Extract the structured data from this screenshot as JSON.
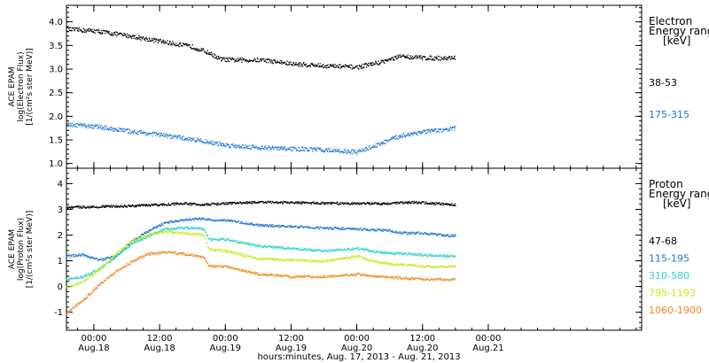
{
  "chart_data": {
    "type": "scatter",
    "x_axis": {
      "label": "hours:minutes, Aug. 17, 2013 - Aug. 21, 2013",
      "range_hours_from_aug17_0000": [
        19,
        124
      ],
      "ticks": [
        {
          "hours": 24,
          "time": "00:00",
          "date": "Aug.18"
        },
        {
          "hours": 36,
          "time": "12:00",
          "date": "Aug.18"
        },
        {
          "hours": 48,
          "time": "00:00",
          "date": "Aug.19"
        },
        {
          "hours": 60,
          "time": "12:00",
          "date": "Aug.19"
        },
        {
          "hours": 72,
          "time": "00:00",
          "date": "Aug.20"
        },
        {
          "hours": 84,
          "time": "12:00",
          "date": "Aug.20"
        },
        {
          "hours": 96,
          "time": "00:00",
          "date": "Aug.21"
        }
      ]
    },
    "panels": [
      {
        "id": "electron",
        "ylabel": [
          "ACE EPAM",
          "log(Electron Flux)",
          "[1/(cm²s ster MeV)]"
        ],
        "ylim": [
          0.9,
          4.35
        ],
        "yticks": [
          "1.0",
          "1.5",
          "2.0",
          "2.5",
          "3.0",
          "3.5",
          "4.0"
        ],
        "legend_title": [
          "Electron",
          "Energy ranges",
          "[keV]"
        ],
        "series": [
          {
            "name": "38-53",
            "color": "#000000",
            "points": [
              [
                19,
                3.85
              ],
              [
                24,
                3.82
              ],
              [
                30,
                3.72
              ],
              [
                36,
                3.6
              ],
              [
                42,
                3.48
              ],
              [
                45,
                3.35
              ],
              [
                47,
                3.22
              ],
              [
                50,
                3.2
              ],
              [
                55,
                3.2
              ],
              [
                60,
                3.12
              ],
              [
                66,
                3.08
              ],
              [
                72,
                3.05
              ],
              [
                76,
                3.15
              ],
              [
                80,
                3.28
              ],
              [
                84,
                3.25
              ],
              [
                88,
                3.24
              ],
              [
                90,
                3.26
              ]
            ]
          },
          {
            "name": "175-315",
            "color": "#1f77d0",
            "points": [
              [
                19,
                1.83
              ],
              [
                24,
                1.8
              ],
              [
                30,
                1.7
              ],
              [
                36,
                1.62
              ],
              [
                42,
                1.52
              ],
              [
                48,
                1.4
              ],
              [
                54,
                1.35
              ],
              [
                60,
                1.32
              ],
              [
                66,
                1.3
              ],
              [
                72,
                1.25
              ],
              [
                76,
                1.42
              ],
              [
                80,
                1.6
              ],
              [
                84,
                1.68
              ],
              [
                88,
                1.72
              ],
              [
                90,
                1.76
              ]
            ]
          }
        ]
      },
      {
        "id": "proton",
        "ylabel": [
          "ACE EPAM",
          "log(Proton Flux)",
          "[1/(cm²s ster MeV)]"
        ],
        "ylim": [
          -1.7,
          4.6
        ],
        "yticks": [
          "-1",
          "0",
          "1",
          "2",
          "3",
          "4"
        ],
        "legend_title": [
          "Proton",
          "Energy ranges",
          "[keV]"
        ],
        "series": [
          {
            "name": "47-68",
            "color": "#000000",
            "points": [
              [
                19,
                3.1
              ],
              [
                24,
                3.12
              ],
              [
                30,
                3.15
              ],
              [
                36,
                3.2
              ],
              [
                40,
                3.25
              ],
              [
                44,
                3.2
              ],
              [
                48,
                3.25
              ],
              [
                54,
                3.3
              ],
              [
                60,
                3.28
              ],
              [
                66,
                3.26
              ],
              [
                72,
                3.25
              ],
              [
                78,
                3.25
              ],
              [
                82,
                3.3
              ],
              [
                86,
                3.25
              ],
              [
                90,
                3.2
              ]
            ]
          },
          {
            "name": "115-195",
            "color": "#1f77d0",
            "points": [
              [
                19,
                1.2
              ],
              [
                22,
                1.25
              ],
              [
                25,
                1.05
              ],
              [
                28,
                1.2
              ],
              [
                31,
                1.8
              ],
              [
                34,
                2.2
              ],
              [
                37,
                2.5
              ],
              [
                40,
                2.6
              ],
              [
                43,
                2.65
              ],
              [
                44,
                2.65
              ],
              [
                46,
                2.6
              ],
              [
                48,
                2.6
              ],
              [
                54,
                2.4
              ],
              [
                60,
                2.35
              ],
              [
                66,
                2.3
              ],
              [
                72,
                2.25
              ],
              [
                78,
                2.2
              ],
              [
                80,
                2.1
              ],
              [
                84,
                2.1
              ],
              [
                88,
                2.0
              ],
              [
                90,
                2.0
              ]
            ]
          },
          {
            "name": "310-580",
            "color": "#2ad6c8",
            "points": [
              [
                19,
                0.3
              ],
              [
                22,
                0.4
              ],
              [
                25,
                0.7
              ],
              [
                28,
                1.2
              ],
              [
                31,
                1.7
              ],
              [
                34,
                2.0
              ],
              [
                37,
                2.25
              ],
              [
                40,
                2.3
              ],
              [
                43,
                2.3
              ],
              [
                44,
                2.25
              ],
              [
                45,
                1.85
              ],
              [
                48,
                1.85
              ],
              [
                54,
                1.6
              ],
              [
                60,
                1.5
              ],
              [
                66,
                1.4
              ],
              [
                72,
                1.5
              ],
              [
                76,
                1.35
              ],
              [
                84,
                1.25
              ],
              [
                90,
                1.2
              ]
            ]
          },
          {
            "name": "795-1193",
            "color": "#c6ea1e",
            "points": [
              [
                19,
                0.0
              ],
              [
                22,
                0.2
              ],
              [
                25,
                0.7
              ],
              [
                28,
                1.3
              ],
              [
                31,
                1.8
              ],
              [
                34,
                2.05
              ],
              [
                37,
                2.15
              ],
              [
                40,
                2.1
              ],
              [
                43,
                2.05
              ],
              [
                44,
                2.0
              ],
              [
                45,
                1.45
              ],
              [
                48,
                1.4
              ],
              [
                54,
                1.1
              ],
              [
                60,
                1.05
              ],
              [
                66,
                1.0
              ],
              [
                72,
                1.2
              ],
              [
                76,
                0.95
              ],
              [
                84,
                0.8
              ],
              [
                90,
                0.8
              ]
            ]
          },
          {
            "name": "1060-1900",
            "color": "#f08a24",
            "points": [
              [
                19,
                -1.0
              ],
              [
                22,
                -0.5
              ],
              [
                25,
                0.1
              ],
              [
                28,
                0.6
              ],
              [
                31,
                1.0
              ],
              [
                34,
                1.3
              ],
              [
                37,
                1.35
              ],
              [
                40,
                1.3
              ],
              [
                43,
                1.2
              ],
              [
                44,
                1.15
              ],
              [
                45,
                0.8
              ],
              [
                48,
                0.8
              ],
              [
                54,
                0.5
              ],
              [
                60,
                0.4
              ],
              [
                66,
                0.4
              ],
              [
                72,
                0.5
              ],
              [
                76,
                0.4
              ],
              [
                84,
                0.3
              ],
              [
                90,
                0.3
              ]
            ]
          }
        ]
      }
    ]
  }
}
